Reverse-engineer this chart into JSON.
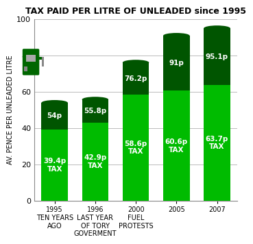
{
  "title": "TAX PAID PER LITRE OF UNLEADED since 1995",
  "ylabel": "AV. PENCE PER UNLEADED LITRE",
  "ylim": [
    0,
    100
  ],
  "yticks": [
    0,
    20,
    40,
    60,
    80,
    100
  ],
  "categories": [
    "1995\nTEN YEARS\nAGO",
    "1996\nLAST YEAR\nOF TORY\nGOVERMENT",
    "2000\nFUEL\nPROTESTS",
    "2005",
    "2007"
  ],
  "tax_values": [
    39.4,
    42.9,
    58.6,
    60.6,
    63.7
  ],
  "total_values": [
    54.0,
    55.8,
    76.2,
    91.0,
    95.1
  ],
  "tax_labels": [
    "39.4p\nTAX",
    "42.9p\nTAX",
    "58.6p\nTAX",
    "60.6p\nTAX",
    "63.7p\nTAX"
  ],
  "total_labels": [
    "54p",
    "55.8p",
    "76.2p",
    "91p",
    "95.1p"
  ],
  "color_light": "#00bb00",
  "color_dark": "#005500",
  "bg_color": "#ffffff",
  "bar_width": 0.65,
  "title_fontsize": 9,
  "label_fontsize": 7.5,
  "tick_fontsize": 7
}
